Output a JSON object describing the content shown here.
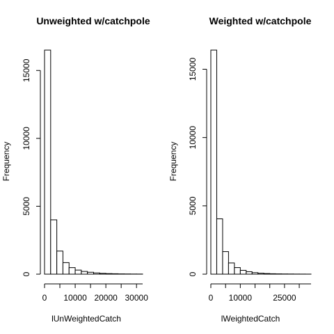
{
  "chart_data": [
    {
      "type": "bar",
      "title": "Unweighted w/catchpole",
      "xlabel": "lUnWeightedCatch",
      "ylabel": "Frequency",
      "bin_width": 2000,
      "bin_start": 0,
      "values": [
        16500,
        4000,
        1700,
        850,
        480,
        300,
        200,
        140,
        90,
        60,
        40,
        30,
        20,
        15,
        10,
        8
      ],
      "xlim": [
        0,
        32000
      ],
      "ylim": [
        0,
        16500
      ],
      "x_ticks": [
        0,
        10000,
        20000,
        30000
      ],
      "x_tick_labels": [
        "0",
        "10000",
        "20000",
        "30000"
      ],
      "y_ticks": [
        0,
        5000,
        10000,
        15000
      ],
      "y_tick_labels": [
        "0",
        "5000",
        "10000",
        "15000"
      ],
      "grid": false,
      "legend": "none"
    },
    {
      "type": "bar",
      "title": "Weighted w/catchpole",
      "xlabel": "lWeightedCatch",
      "ylabel": "Frequency",
      "bin_width": 2000,
      "bin_start": 0,
      "values": [
        16400,
        4050,
        1650,
        820,
        480,
        280,
        180,
        110,
        70,
        45,
        30,
        22,
        16,
        12,
        8,
        6,
        4
      ],
      "xlim": [
        0,
        34000
      ],
      "ylim": [
        0,
        16400
      ],
      "x_ticks": [
        0,
        10000,
        25000
      ],
      "x_tick_labels": [
        "0",
        "10000",
        "25000"
      ],
      "y_ticks": [
        0,
        5000,
        10000,
        15000
      ],
      "y_tick_labels": [
        "0",
        "5000",
        "10000",
        "15000"
      ],
      "grid": false,
      "legend": "none"
    }
  ]
}
